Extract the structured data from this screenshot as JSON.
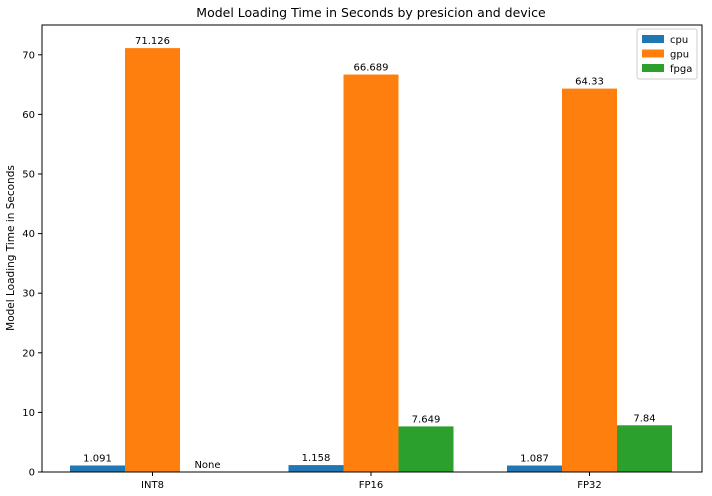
{
  "chart_data": {
    "type": "bar",
    "title": "Model Loading Time in Seconds by presicion and device",
    "xlabel": "",
    "ylabel": "Model Loading Time in Seconds",
    "categories": [
      "INT8",
      "FP16",
      "FP32"
    ],
    "ylim": [
      0,
      75
    ],
    "yticks": [
      0,
      10,
      20,
      30,
      40,
      50,
      60,
      70
    ],
    "grid": false,
    "legend_position": "top-right",
    "series": [
      {
        "name": "cpu",
        "color": "#1f77b4",
        "values": [
          1.091,
          1.158,
          1.087
        ],
        "labels": [
          "1.091",
          "1.158",
          "1.087"
        ]
      },
      {
        "name": "gpu",
        "color": "#ff7f0e",
        "values": [
          71.126,
          66.689,
          64.33
        ],
        "labels": [
          "71.126",
          "66.689",
          "64.33"
        ]
      },
      {
        "name": "fpga",
        "color": "#2ca02c",
        "values": [
          null,
          7.649,
          7.84
        ],
        "labels": [
          "None",
          "7.649",
          "7.84"
        ]
      }
    ]
  }
}
